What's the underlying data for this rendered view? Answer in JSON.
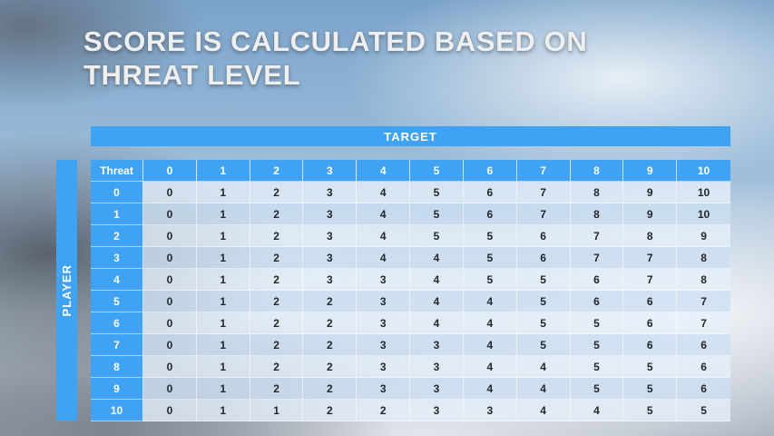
{
  "slide": {
    "title_line1": "SCORE IS CALCULATED BASED ON",
    "title_line2": "THREAT LEVEL"
  },
  "table": {
    "target_label": "TARGET",
    "player_label": "PLAYER",
    "corner_label": "Threat",
    "column_headers": [
      "0",
      "1",
      "2",
      "3",
      "4",
      "5",
      "6",
      "7",
      "8",
      "9",
      "10"
    ],
    "rows": [
      {
        "label": "0",
        "values": [
          0,
          1,
          2,
          3,
          4,
          5,
          6,
          7,
          8,
          9,
          10
        ]
      },
      {
        "label": "1",
        "values": [
          0,
          1,
          2,
          3,
          4,
          5,
          6,
          7,
          8,
          9,
          10
        ]
      },
      {
        "label": "2",
        "values": [
          0,
          1,
          2,
          3,
          4,
          5,
          5,
          6,
          7,
          8,
          9
        ]
      },
      {
        "label": "3",
        "values": [
          0,
          1,
          2,
          3,
          4,
          4,
          5,
          6,
          7,
          7,
          8
        ]
      },
      {
        "label": "4",
        "values": [
          0,
          1,
          2,
          3,
          3,
          4,
          5,
          5,
          6,
          7,
          8
        ]
      },
      {
        "label": "5",
        "values": [
          0,
          1,
          2,
          2,
          3,
          4,
          4,
          5,
          6,
          6,
          7
        ]
      },
      {
        "label": "6",
        "values": [
          0,
          1,
          2,
          2,
          3,
          4,
          4,
          5,
          5,
          6,
          7
        ]
      },
      {
        "label": "7",
        "values": [
          0,
          1,
          2,
          2,
          3,
          3,
          4,
          5,
          5,
          6,
          6
        ]
      },
      {
        "label": "8",
        "values": [
          0,
          1,
          2,
          2,
          3,
          3,
          4,
          4,
          5,
          5,
          6
        ]
      },
      {
        "label": "9",
        "values": [
          0,
          1,
          2,
          2,
          3,
          3,
          4,
          4,
          5,
          5,
          6
        ]
      },
      {
        "label": "10",
        "values": [
          0,
          1,
          1,
          2,
          2,
          3,
          3,
          4,
          4,
          5,
          5
        ]
      }
    ]
  },
  "colors": {
    "accent_blue": "#3fa2f3",
    "band_light": "rgba(229,239,250,0.78)",
    "band_dark": "rgba(205,223,244,0.78)",
    "title_text": "#efefef",
    "cell_text": "#23272e"
  }
}
